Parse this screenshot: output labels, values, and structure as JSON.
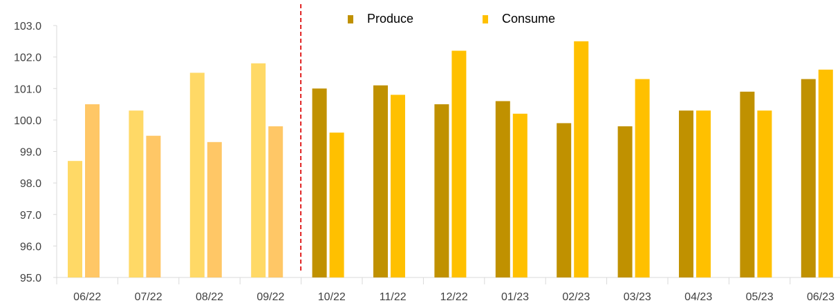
{
  "chart_data": {
    "type": "bar",
    "categories": [
      "06/22",
      "07/22",
      "08/22",
      "09/22",
      "10/22",
      "11/22",
      "12/22",
      "01/23",
      "02/23",
      "03/23",
      "04/23",
      "05/23",
      "06/23"
    ],
    "series": [
      {
        "name": "Produce",
        "values": [
          98.7,
          100.3,
          101.5,
          101.8,
          101.0,
          101.1,
          100.5,
          100.6,
          99.9,
          99.8,
          100.3,
          100.9,
          101.3
        ]
      },
      {
        "name": "Consume",
        "values": [
          100.5,
          99.5,
          99.3,
          99.8,
          99.6,
          100.8,
          102.2,
          100.2,
          102.5,
          101.3,
          100.3,
          100.3,
          101.6
        ]
      }
    ],
    "ylim": [
      95.0,
      103.0
    ],
    "yticks": [
      "95.0",
      "96.0",
      "97.0",
      "98.0",
      "99.0",
      "100.0",
      "101.0",
      "102.0",
      "103.0"
    ],
    "grid": false,
    "legend_position": "top-center",
    "divider_after_category": "09/22",
    "colors": {
      "produce": "#C09100",
      "consume": "#FFC000",
      "produce_early": "#FFD966",
      "consume_early": "#FFC766",
      "divider": "#E02020",
      "axis": "#D9D9D9"
    }
  }
}
